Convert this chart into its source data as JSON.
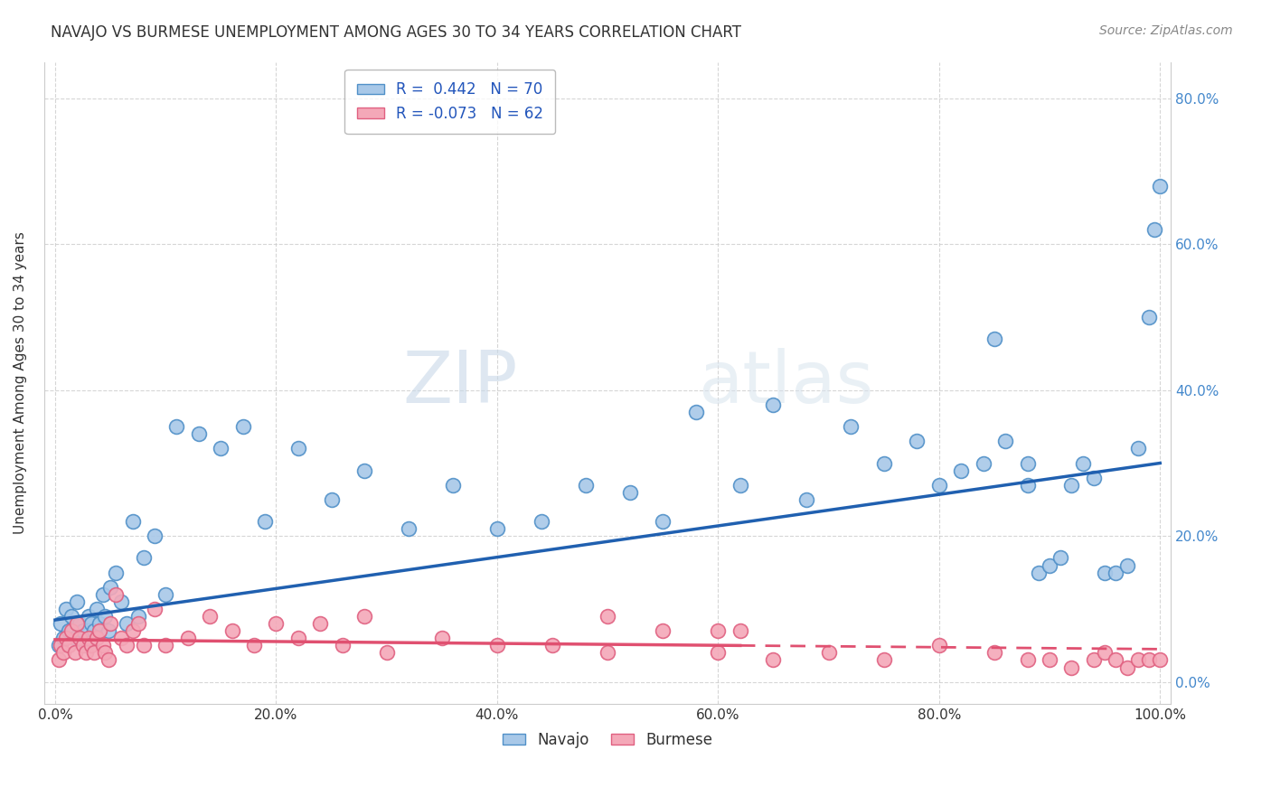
{
  "title": "NAVAJO VS BURMESE UNEMPLOYMENT AMONG AGES 30 TO 34 YEARS CORRELATION CHART",
  "source": "Source: ZipAtlas.com",
  "ylabel": "Unemployment Among Ages 30 to 34 years",
  "navajo_R": 0.442,
  "navajo_N": 70,
  "burmese_R": -0.073,
  "burmese_N": 62,
  "navajo_color": "#a8c8e8",
  "burmese_color": "#f4a8b8",
  "navajo_edge_color": "#5090c8",
  "burmese_edge_color": "#e06080",
  "navajo_line_color": "#2060b0",
  "burmese_line_color": "#e05070",
  "background_color": "#ffffff",
  "grid_color": "#cccccc",
  "watermark_zip": "ZIP",
  "watermark_atlas": "atlas",
  "navajo_x": [
    0.3,
    0.5,
    0.7,
    1.0,
    1.2,
    1.5,
    1.8,
    2.0,
    2.2,
    2.5,
    2.8,
    3.0,
    3.3,
    3.5,
    3.8,
    4.0,
    4.3,
    4.5,
    4.8,
    5.0,
    5.5,
    6.0,
    6.5,
    7.0,
    7.5,
    8.0,
    9.0,
    10.0,
    11.0,
    13.0,
    15.0,
    17.0,
    19.0,
    22.0,
    25.0,
    28.0,
    32.0,
    36.0,
    40.0,
    44.0,
    48.0,
    52.0,
    55.0,
    58.0,
    62.0,
    65.0,
    68.0,
    72.0,
    75.0,
    78.0,
    80.0,
    82.0,
    84.0,
    86.0,
    88.0,
    89.0,
    90.0,
    91.0,
    92.0,
    93.0,
    94.0,
    95.0,
    96.0,
    97.0,
    98.0,
    99.0,
    99.5,
    100.0,
    85.0,
    88.0
  ],
  "navajo_y": [
    5.0,
    8.0,
    6.0,
    10.0,
    7.0,
    9.0,
    6.0,
    11.0,
    8.0,
    7.0,
    5.0,
    9.0,
    8.0,
    7.0,
    10.0,
    8.0,
    12.0,
    9.0,
    7.0,
    13.0,
    15.0,
    11.0,
    8.0,
    22.0,
    9.0,
    17.0,
    20.0,
    12.0,
    35.0,
    34.0,
    32.0,
    35.0,
    22.0,
    32.0,
    25.0,
    29.0,
    21.0,
    27.0,
    21.0,
    22.0,
    27.0,
    26.0,
    22.0,
    37.0,
    27.0,
    38.0,
    25.0,
    35.0,
    30.0,
    33.0,
    27.0,
    29.0,
    30.0,
    33.0,
    27.0,
    15.0,
    16.0,
    17.0,
    27.0,
    30.0,
    28.0,
    15.0,
    15.0,
    16.0,
    32.0,
    50.0,
    62.0,
    68.0,
    47.0,
    30.0
  ],
  "burmese_x": [
    0.3,
    0.5,
    0.7,
    1.0,
    1.2,
    1.5,
    1.8,
    2.0,
    2.2,
    2.5,
    2.8,
    3.0,
    3.3,
    3.5,
    3.8,
    4.0,
    4.3,
    4.5,
    4.8,
    5.0,
    5.5,
    6.0,
    6.5,
    7.0,
    7.5,
    8.0,
    9.0,
    10.0,
    12.0,
    14.0,
    16.0,
    18.0,
    20.0,
    22.0,
    24.0,
    26.0,
    28.0,
    30.0,
    35.0,
    40.0,
    45.0,
    50.0,
    55.0,
    60.0,
    62.0,
    65.0,
    70.0,
    75.0,
    80.0,
    85.0,
    88.0,
    90.0,
    92.0,
    94.0,
    95.0,
    96.0,
    97.0,
    98.0,
    99.0,
    100.0,
    50.0,
    60.0
  ],
  "burmese_y": [
    3.0,
    5.0,
    4.0,
    6.0,
    5.0,
    7.0,
    4.0,
    8.0,
    6.0,
    5.0,
    4.0,
    6.0,
    5.0,
    4.0,
    6.0,
    7.0,
    5.0,
    4.0,
    3.0,
    8.0,
    12.0,
    6.0,
    5.0,
    7.0,
    8.0,
    5.0,
    10.0,
    5.0,
    6.0,
    9.0,
    7.0,
    5.0,
    8.0,
    6.0,
    8.0,
    5.0,
    9.0,
    4.0,
    6.0,
    5.0,
    5.0,
    4.0,
    7.0,
    4.0,
    7.0,
    3.0,
    4.0,
    3.0,
    5.0,
    4.0,
    3.0,
    3.0,
    2.0,
    3.0,
    4.0,
    3.0,
    2.0,
    3.0,
    3.0,
    3.0,
    9.0,
    7.0
  ],
  "navajo_trend_x0": 0,
  "navajo_trend_y0": 8.5,
  "navajo_trend_x1": 100,
  "navajo_trend_y1": 30.0,
  "burmese_trend_x0": 0,
  "burmese_trend_y0": 5.8,
  "burmese_trend_x1": 100,
  "burmese_trend_y1": 4.5,
  "burmese_solid_end": 62,
  "xlim_min": -1,
  "xlim_max": 101,
  "ylim_min": -3,
  "ylim_max": 85,
  "x_ticks": [
    0,
    20,
    40,
    60,
    80,
    100
  ],
  "y_ticks_left": [],
  "y_ticks_right": [
    0,
    20,
    40,
    60,
    80
  ],
  "title_fontsize": 12,
  "axis_label_fontsize": 11,
  "tick_fontsize": 11
}
